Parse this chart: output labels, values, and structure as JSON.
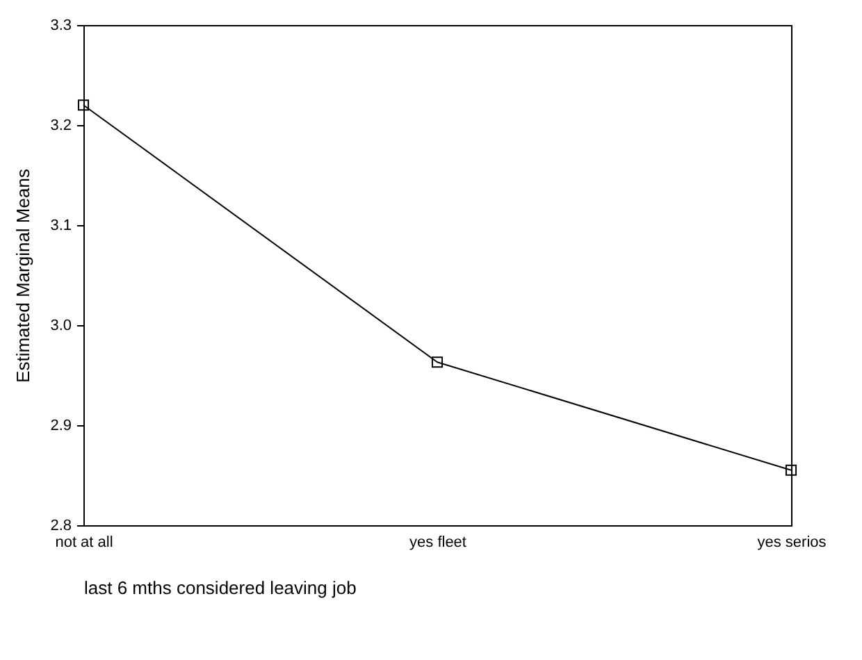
{
  "chart_data": {
    "type": "line",
    "xlabel": "last 6 mths considered leaving job",
    "ylabel": "Estimated Marginal Means",
    "categories": [
      "not at all",
      "yes fleet",
      "yes serios"
    ],
    "series": [
      {
        "color": "#000000",
        "values": [
          3.22,
          2.963,
          2.855
        ]
      }
    ],
    "ylim": [
      2.8,
      3.3
    ],
    "yticks": [
      2.8,
      2.9,
      {
        "value": 3,
        "label": "3.0"
      },
      3.1,
      3.2,
      3.3
    ],
    "grid": false,
    "legend": false,
    "marker": "square",
    "line_style": "solid"
  }
}
